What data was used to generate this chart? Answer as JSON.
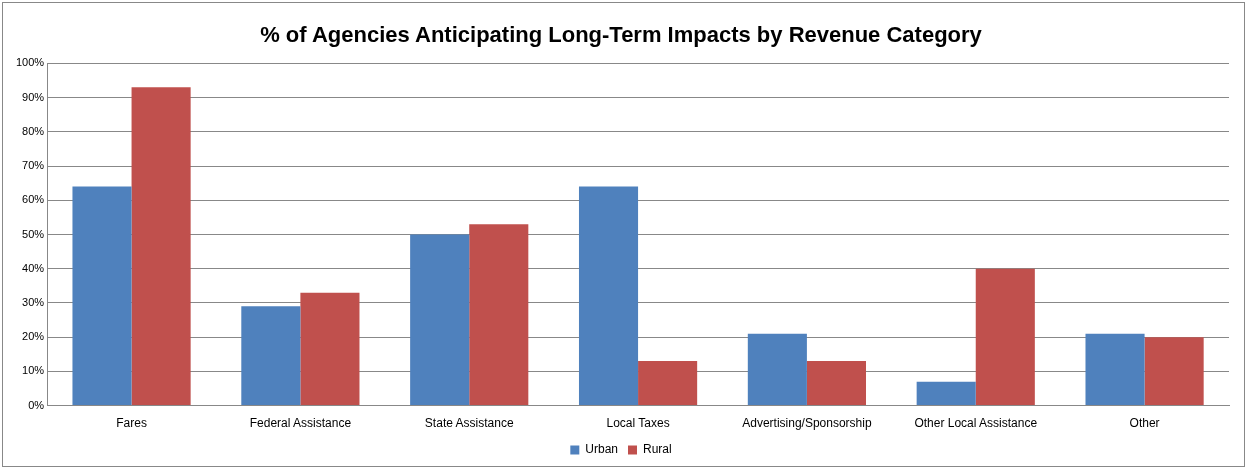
{
  "chart_data": {
    "type": "bar",
    "title": "% of Agencies Anticipating Long-Term Impacts by Revenue Category",
    "categories": [
      "Fares",
      "Federal Assistance",
      "State Assistance",
      "Local Taxes",
      "Advertising/Sponsorship",
      "Other Local Assistance",
      "Other"
    ],
    "series": [
      {
        "name": "Urban",
        "color": "#4f81bd",
        "values": [
          64,
          29,
          50,
          64,
          21,
          7,
          21
        ]
      },
      {
        "name": "Rural",
        "color": "#c0504d",
        "values": [
          93,
          33,
          53,
          13,
          13,
          40,
          20
        ]
      }
    ],
    "ylim": [
      0,
      100
    ],
    "yticks": [
      {
        "value": 0,
        "label": "0%"
      },
      {
        "value": 10,
        "label": "10%"
      },
      {
        "value": 20,
        "label": "20%"
      },
      {
        "value": 30,
        "label": "30%"
      },
      {
        "value": 40,
        "label": "40%"
      },
      {
        "value": 50,
        "label": "50%"
      },
      {
        "value": 60,
        "label": "60%"
      },
      {
        "value": 70,
        "label": "70%"
      },
      {
        "value": 80,
        "label": "80%"
      },
      {
        "value": 90,
        "label": "90%"
      },
      {
        "value": 100,
        "label": "100%"
      }
    ],
    "grid": "y",
    "legend": "bottom"
  }
}
